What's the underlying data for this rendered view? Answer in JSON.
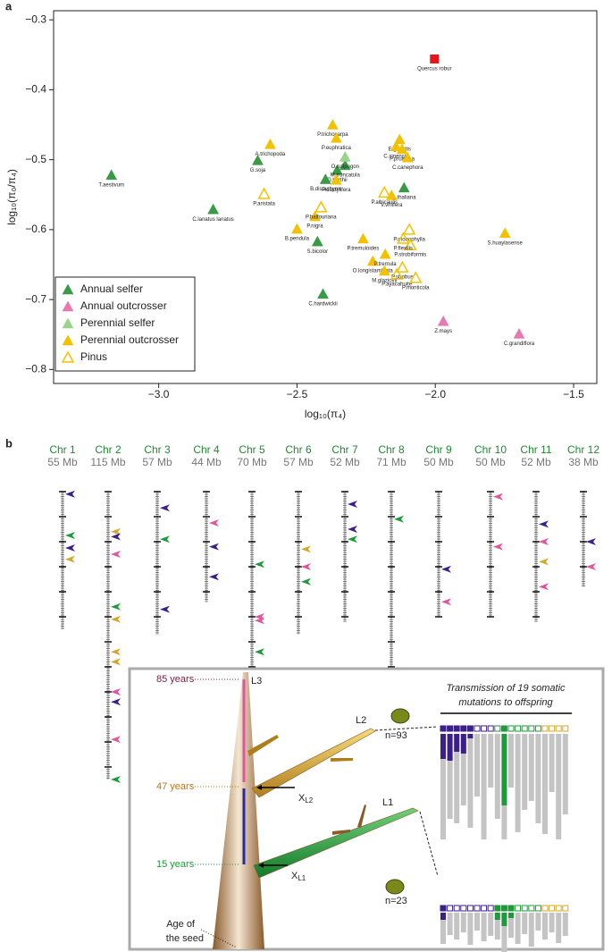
{
  "panel_labels": [
    "a",
    "b"
  ],
  "chart_data": {
    "type": "scatter",
    "x_label": "log₁₀(π₄)",
    "y_label": "log₁₀(π₀/π₄)",
    "xlim": [
      -3.38,
      -1.416
    ],
    "ylim": [
      -0.82,
      -0.287
    ],
    "xticks": [
      {
        "value": -3.0,
        "label": "−3.0"
      },
      {
        "value": -2.5,
        "label": "−2.5"
      },
      {
        "value": -2.0,
        "label": "−2.0"
      },
      {
        "value": -1.5,
        "label": "−1.5"
      }
    ],
    "yticks": [
      {
        "value": -0.3,
        "label": "−0.3"
      },
      {
        "value": -0.4,
        "label": "−0.4"
      },
      {
        "value": -0.5,
        "label": "−0.5"
      },
      {
        "value": -0.6,
        "label": "−0.6"
      },
      {
        "value": -0.7,
        "label": "−0.7"
      },
      {
        "value": -0.8,
        "label": "−0.8"
      }
    ],
    "legend": "lower left",
    "series": [
      {
        "name": "Annual selfer",
        "color": "#3a9a45",
        "marker": "triangle",
        "labels": [
          "T.aestivum",
          "C.lanatus lanatus",
          "G.soja",
          "O.barthii",
          "B.distachyon",
          "M.truncatula",
          "S.bicolor",
          "A.thaliana",
          "C.hardwickii"
        ],
        "x": [
          -3.171,
          -2.803,
          -2.642,
          -2.355,
          -2.397,
          -2.326,
          -2.426,
          -2.113,
          -2.406
        ],
        "values": [
          -0.522,
          -0.571,
          -0.501,
          -0.515,
          -0.528,
          -0.508,
          -0.617,
          -0.54,
          -0.692
        ]
      },
      {
        "name": "Annual outcrosser",
        "color": "#e879b0",
        "marker": "triangle",
        "labels": [
          "Z.mays",
          "C.grandiflora"
        ],
        "x": [
          -1.971,
          -1.697
        ],
        "values": [
          -0.731,
          -0.749
        ]
      },
      {
        "name": "Perennial selfer",
        "color": "#9ad48a",
        "marker": "triangle",
        "labels": [
          "O.rufipogon"
        ],
        "x": [
          -2.326
        ],
        "values": [
          -0.496
        ]
      },
      {
        "name": "Perennial outcrosser",
        "color": "#f2c200",
        "marker": "triangle",
        "labels": [
          "A.trichopoda",
          "P.trichocarpa",
          "P.euphratica",
          "E.grandis",
          "C.sinensis",
          "P.pruinosa",
          "C.canephora",
          "P.dactylifera",
          "P.nigra",
          "B.pendula",
          "P.tremuloides",
          "O.longistaminata",
          "P.tremula",
          "M.glaziovii",
          "S.huaylasense",
          "V.vinifera"
        ],
        "x": [
          -2.597,
          -2.371,
          -2.358,
          -2.129,
          -2.142,
          -2.12,
          -2.1,
          -2.358,
          -2.435,
          -2.5,
          -2.261,
          -2.226,
          -2.181,
          -2.184,
          -1.748,
          -2.158
        ],
        "values": [
          -0.478,
          -0.45,
          -0.469,
          -0.471,
          -0.481,
          -0.485,
          -0.497,
          -0.529,
          -0.581,
          -0.599,
          -0.613,
          -0.645,
          -0.635,
          -0.659,
          -0.605,
          -0.551
        ]
      },
      {
        "name": "Pinus",
        "color": "#f2c200",
        "marker": "triangle-open",
        "labels": [
          "P.aristata",
          "P.balfouriana",
          "P.albicaulis",
          "P.monophylla",
          "P.strobiformis",
          "P.flexilis",
          "P.strobus",
          "P.ayacahuite",
          "P.monticola"
        ],
        "x": [
          -2.619,
          -2.413,
          -2.184,
          -2.094,
          -2.09,
          -2.116,
          -2.119,
          -2.139,
          -2.071
        ],
        "values": [
          -0.549,
          -0.568,
          -0.547,
          -0.6,
          -0.622,
          -0.613,
          -0.654,
          -0.664,
          -0.669
        ]
      },
      {
        "color": "#e8141b",
        "marker": "square",
        "labels": [
          "Quercus robur"
        ],
        "x": [
          -2.003
        ],
        "values": [
          -0.356
        ]
      }
    ]
  },
  "chromosomes": [
    {
      "name": "Chr 1",
      "size": "55 Mb",
      "length": 55,
      "mutations": [
        {
          "pos": 1,
          "color": "#3b1f8a"
        },
        {
          "pos": 17.5,
          "color": "#1f9a3a"
        },
        {
          "pos": 22.5,
          "color": "#3b1f8a"
        },
        {
          "pos": 27,
          "color": "#d4a72c"
        }
      ]
    },
    {
      "name": "Chr 2",
      "size": "115 Mb",
      "length": 115,
      "mutations": [
        {
          "pos": 16,
          "color": "#d4a72c"
        },
        {
          "pos": 18,
          "color": "#3b1f8a"
        },
        {
          "pos": 25,
          "color": "#e0559b"
        },
        {
          "pos": 46,
          "color": "#1f9a3a"
        },
        {
          "pos": 51,
          "color": "#d4a72c"
        },
        {
          "pos": 64,
          "color": "#d4a72c"
        },
        {
          "pos": 68,
          "color": "#d4a72c"
        },
        {
          "pos": 80,
          "color": "#e0559b"
        },
        {
          "pos": 84,
          "color": "#3b1f8a"
        },
        {
          "pos": 99,
          "color": "#e0559b"
        },
        {
          "pos": 115,
          "color": "#1f9a3a"
        }
      ]
    },
    {
      "name": "Chr 3",
      "size": "57 Mb",
      "length": 57,
      "mutations": [
        {
          "pos": 6.5,
          "color": "#3b1f8a"
        },
        {
          "pos": 19,
          "color": "#1f9a3a"
        },
        {
          "pos": 47,
          "color": "#3b1f8a"
        }
      ]
    },
    {
      "name": "Chr 4",
      "size": "44 Mb",
      "length": 44,
      "mutations": [
        {
          "pos": 12.5,
          "color": "#e0559b"
        },
        {
          "pos": 22,
          "color": "#3b1f8a"
        },
        {
          "pos": 34,
          "color": "#3b1f8a"
        }
      ]
    },
    {
      "name": "Chr 5",
      "size": "70 Mb",
      "length": 70,
      "mutations": [
        {
          "pos": 29,
          "color": "#1f9a3a"
        },
        {
          "pos": 50,
          "color": "#e0559b"
        },
        {
          "pos": 51.5,
          "color": "#e0559b"
        },
        {
          "pos": 64,
          "color": "#1f9a3a"
        }
      ]
    },
    {
      "name": "Chr 6",
      "size": "57 Mb",
      "length": 57,
      "mutations": [
        {
          "pos": 23,
          "color": "#d4a72c"
        },
        {
          "pos": 30,
          "color": "#e0559b"
        },
        {
          "pos": 36,
          "color": "#1f9a3a"
        }
      ]
    },
    {
      "name": "Chr 7",
      "size": "52 Mb",
      "length": 52,
      "mutations": [
        {
          "pos": 5,
          "color": "#3b1f8a"
        },
        {
          "pos": 15,
          "color": "#3b1f8a"
        },
        {
          "pos": 19,
          "color": "#1f9a3a"
        }
      ]
    },
    {
      "name": "Chr 8",
      "size": "71 Mb",
      "length": 71,
      "mutations": [
        {
          "pos": 11,
          "color": "#1f9a3a"
        }
      ]
    },
    {
      "name": "Chr 9",
      "size": "50 Mb",
      "length": 50,
      "mutations": [
        {
          "pos": 31,
          "color": "#3b1f8a"
        },
        {
          "pos": 44,
          "color": "#e0559b"
        }
      ]
    },
    {
      "name": "Chr 10",
      "size": "50 Mb",
      "length": 50,
      "mutations": [
        {
          "pos": 2,
          "color": "#e0559b"
        },
        {
          "pos": 22,
          "color": "#e0559b"
        }
      ]
    },
    {
      "name": "Chr 11",
      "size": "52 Mb",
      "length": 52,
      "mutations": [
        {
          "pos": 13,
          "color": "#3b1f8a"
        },
        {
          "pos": 20,
          "color": "#e0559b"
        },
        {
          "pos": 28,
          "color": "#d4a72c"
        },
        {
          "pos": 38,
          "color": "#e0559b"
        }
      ]
    },
    {
      "name": "Chr 12",
      "size": "38 Mb",
      "length": 38,
      "mutations": [
        {
          "pos": 20,
          "color": "#3b1f8a"
        },
        {
          "pos": 30,
          "color": "#e0559b"
        }
      ]
    }
  ],
  "inset": {
    "ages": [
      "85 years",
      "47 years",
      "15 years"
    ],
    "seed_label": [
      "Age of",
      "the seed"
    ],
    "branches": [
      "L3",
      "L2",
      "L1"
    ],
    "points": [
      {
        "main": "X",
        "sub": "L2"
      },
      {
        "main": "X",
        "sub": "L1"
      }
    ],
    "samples": [
      "n=93",
      "n=23"
    ],
    "title": [
      "Transmission of 19 somatic",
      "mutations to offspring"
    ],
    "mutations": [
      {
        "color": "#3b1f8a",
        "l2": [
          28,
          118
        ],
        "l1": [
          8,
          35
        ]
      },
      {
        "color": "#3b1f8a",
        "l2": [
          30,
          95
        ],
        "l1": [
          0,
          25
        ]
      },
      {
        "color": "#3b1f8a",
        "l2": [
          20,
          100
        ],
        "l1": [
          0,
          30
        ]
      },
      {
        "color": "#3b1f8a",
        "l2": [
          22,
          80
        ],
        "l1": [
          0,
          22
        ]
      },
      {
        "color": "#3b1f8a",
        "l2": [
          5,
          105
        ],
        "l1": [
          0,
          36
        ]
      },
      {
        "color": "#3b1f8a",
        "l2": [
          0,
          70
        ],
        "l1": [
          0,
          20
        ]
      },
      {
        "color": "#3b1f8a",
        "l2": [
          0,
          118
        ],
        "l1": [
          0,
          32
        ]
      },
      {
        "color": "#3b1f8a",
        "l2": [
          0,
          60
        ],
        "l1": [
          0,
          26
        ]
      },
      {
        "color": "#1f9a3a",
        "l2": [
          0,
          95
        ],
        "l1": [
          8,
          30
        ]
      },
      {
        "color": "#1f9a3a",
        "l2": [
          80,
          118
        ],
        "l1": [
          15,
          45
        ]
      },
      {
        "color": "#1f9a3a",
        "l2": [
          0,
          60
        ],
        "l1": [
          6,
          28
        ]
      },
      {
        "color": "#1f9a3a",
        "l2": [
          0,
          110
        ],
        "l1": [
          0,
          35
        ]
      },
      {
        "color": "#1f9a3a",
        "l2": [
          0,
          85
        ],
        "l1": [
          0,
          24
        ]
      },
      {
        "color": "#1f9a3a",
        "l2": [
          0,
          75
        ],
        "l1": [
          0,
          38
        ]
      },
      {
        "color": "#1f9a3a",
        "l2": [
          0,
          100
        ],
        "l1": [
          0,
          20
        ]
      },
      {
        "color": "#d4a72c",
        "l2": [
          0,
          112
        ],
        "l1": [
          0,
          30
        ]
      },
      {
        "color": "#d4a72c",
        "l2": [
          0,
          65
        ],
        "l1": [
          0,
          22
        ]
      },
      {
        "color": "#d4a72c",
        "l2": [
          0,
          118
        ],
        "l1": [
          0,
          34
        ]
      },
      {
        "color": "#d4a72c",
        "l2": [
          0,
          90
        ],
        "l1": [
          0,
          26
        ]
      }
    ]
  }
}
